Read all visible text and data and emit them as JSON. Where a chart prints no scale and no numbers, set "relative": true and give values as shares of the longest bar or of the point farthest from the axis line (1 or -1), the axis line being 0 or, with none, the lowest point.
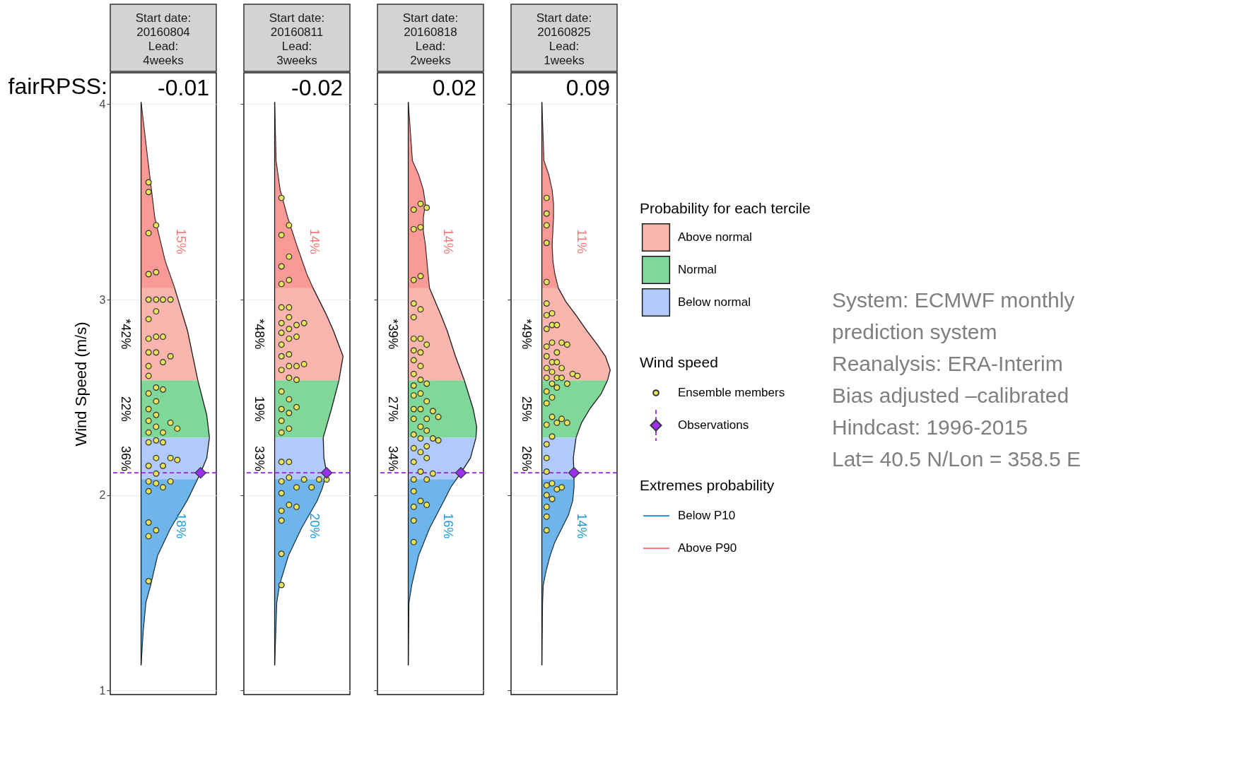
{
  "chart_data": [
    {
      "type": "area",
      "orientation": "horizontal",
      "relative": true,
      "title": "Start date:\n20160804\nLead:\n4weeks",
      "subtitle": "-0.01",
      "ylabel": "Wind Speed (m/s)",
      "ylim": [
        0.98,
        4.16
      ],
      "yticks": [
        1,
        2,
        3,
        4
      ],
      "grid": "y",
      "tick_labels": "y",
      "ref_lines": [
        {
          "axis": "y",
          "value": 2.114,
          "color": "#a020f0",
          "line_style": "dashed"
        }
      ],
      "annotations": [
        "fairRPSS:",
        "*42%",
        "22%",
        "36%",
        "15%",
        "18%"
      ],
      "series": [
        {
          "color": "#f9b5ae",
          "x": [
            2.587,
            2.84,
            3.06,
            3.2,
            3.42,
            3.71,
            4.01
          ],
          "values": [
            0.83,
            0.68,
            0.49,
            0.35,
            0.2,
            0.1,
            0
          ]
        },
        {
          "color": "#7fd89a",
          "x": [
            2.294,
            2.41,
            2.587
          ],
          "values": [
            1.0,
            0.96,
            0.83
          ]
        },
        {
          "color": "#b0cbfb",
          "x": [
            1.13,
            1.3,
            1.45,
            1.54,
            1.69,
            1.83,
            1.977,
            2.114,
            2.19,
            2.294
          ],
          "values": [
            0,
            0.03,
            0.07,
            0.14,
            0.24,
            0.43,
            0.68,
            0.87,
            0.96,
            1.0
          ]
        },
        {
          "color": "#1e9bd7",
          "x": [
            1.13,
            1.3,
            1.45,
            1.54,
            1.69,
            1.83,
            1.977,
            2.08
          ],
          "values": [
            0,
            0.03,
            0.07,
            0.14,
            0.24,
            0.43,
            0.68,
            0.82
          ]
        },
        {
          "color": "#f87a7a",
          "x": [
            3.06,
            3.2,
            3.42,
            3.71,
            4.01
          ],
          "values": [
            0.49,
            0.35,
            0.2,
            0.1,
            0
          ]
        },
        {
          "type": "scatter",
          "marker": "circle",
          "color": "#e8e35a",
          "x": [
            3.6,
            3.55,
            3.38,
            3.34,
            3.13,
            3.14,
            3.0,
            3.0,
            3.0,
            3.0,
            2.94,
            2.9,
            2.8,
            2.81,
            2.81,
            2.73,
            2.73,
            2.71,
            2.68,
            2.66,
            2.61,
            2.55,
            2.54,
            2.52,
            2.48,
            2.44,
            2.41,
            2.38,
            2.37,
            2.34,
            2.35,
            2.32,
            2.32,
            2.27,
            2.28,
            2.27,
            2.19,
            2.19,
            2.18,
            2.15,
            2.15,
            2.11,
            2.07,
            2.06,
            2.07,
            2.04,
            2.02,
            1.86,
            1.82,
            1.79,
            1.56
          ],
          "values": [
            0.11,
            0.11,
            0.22,
            0.11,
            0.11,
            0.22,
            0.11,
            0.22,
            0.32,
            0.43,
            0.22,
            0.11,
            0.11,
            0.22,
            0.32,
            0.11,
            0.22,
            0.43,
            0.32,
            0.11,
            0.11,
            0.22,
            0.32,
            0.11,
            0.22,
            0.11,
            0.22,
            0.11,
            0.43,
            0.53,
            0.22,
            0.11,
            0.32,
            0.11,
            0.22,
            0.32,
            0.22,
            0.43,
            0.53,
            0.32,
            0.11,
            0.22,
            0.11,
            0.22,
            0.43,
            0.32,
            0.11,
            0.11,
            0.22,
            0.11,
            0.11
          ]
        },
        {
          "type": "scatter",
          "marker": "diamond",
          "color": "#9b30f0",
          "x": [
            2.114
          ],
          "values": [
            0.87
          ]
        }
      ]
    },
    {
      "type": "area",
      "orientation": "horizontal",
      "relative": true,
      "title": "Start date:\n20160811\nLead:\n3weeks",
      "subtitle": "-0.02",
      "ylim": [
        0.98,
        4.16
      ],
      "yticks": [
        1,
        2,
        3,
        4
      ],
      "grid": "y",
      "tick_labels": false,
      "ref_lines": [
        {
          "axis": "y",
          "value": 2.114,
          "color": "#a020f0",
          "line_style": "dashed"
        }
      ],
      "annotations": [
        "*48%",
        "19%",
        "33%",
        "14%",
        "20%"
      ],
      "series": [
        {
          "color": "#f9b5ae",
          "x": [
            2.587,
            2.71,
            2.84,
            2.92,
            3.06,
            3.13,
            3.28,
            3.42,
            3.56,
            3.71,
            4.01
          ],
          "values": [
            0.94,
            1.0,
            0.86,
            0.76,
            0.56,
            0.47,
            0.32,
            0.19,
            0.08,
            0.02,
            0
          ]
        },
        {
          "color": "#7fd89a",
          "x": [
            2.294,
            2.44,
            2.587
          ],
          "values": [
            0.71,
            0.83,
            0.94
          ]
        },
        {
          "color": "#b0cbfb",
          "x": [
            1.13,
            1.45,
            1.54,
            1.69,
            1.83,
            1.97,
            2.04,
            2.114,
            2.19,
            2.294
          ],
          "values": [
            0,
            0.03,
            0.07,
            0.2,
            0.39,
            0.62,
            0.7,
            0.76,
            0.72,
            0.71
          ]
        },
        {
          "color": "#1e9bd7",
          "x": [
            1.13,
            1.45,
            1.54,
            1.69,
            1.83,
            1.97,
            2.04,
            2.08
          ],
          "values": [
            0,
            0.03,
            0.07,
            0.2,
            0.39,
            0.62,
            0.7,
            0.73
          ]
        },
        {
          "color": "#f87a7a",
          "x": [
            3.06,
            3.13,
            3.28,
            3.42,
            3.56,
            3.71,
            4.01
          ],
          "values": [
            0.56,
            0.47,
            0.32,
            0.19,
            0.08,
            0.02,
            0
          ]
        },
        {
          "type": "scatter",
          "marker": "circle",
          "color": "#e8e35a",
          "x": [
            3.52,
            3.38,
            3.33,
            3.22,
            3.17,
            3.1,
            3.08,
            2.96,
            2.96,
            2.91,
            2.88,
            2.87,
            2.88,
            2.83,
            2.85,
            2.81,
            2.8,
            2.77,
            2.71,
            2.72,
            2.67,
            2.66,
            2.66,
            2.64,
            2.6,
            2.59,
            2.53,
            2.49,
            2.45,
            2.44,
            2.42,
            2.38,
            2.34,
            2.32,
            2.17,
            2.17,
            2.07,
            2.09,
            2.08,
            2.08,
            2.08,
            2.04,
            2.04,
            2.01,
            1.95,
            1.94,
            1.92,
            1.87,
            1.7,
            1.54
          ],
          "values": [
            0.1,
            0.21,
            0.1,
            0.21,
            0.1,
            0.21,
            0.1,
            0.1,
            0.21,
            0.21,
            0.1,
            0.32,
            0.43,
            0.1,
            0.21,
            0.32,
            0.21,
            0.1,
            0.1,
            0.21,
            0.43,
            0.32,
            0.21,
            0.1,
            0.21,
            0.32,
            0.1,
            0.21,
            0.32,
            0.1,
            0.21,
            0.1,
            0.21,
            0.1,
            0.1,
            0.21,
            0.1,
            0.21,
            0.43,
            0.65,
            0.76,
            0.32,
            0.54,
            0.1,
            0.21,
            0.32,
            0.1,
            0.1,
            0.1,
            0.1
          ]
        },
        {
          "type": "scatter",
          "marker": "diamond",
          "color": "#9b30f0",
          "x": [
            2.114
          ],
          "values": [
            0.76
          ]
        }
      ]
    },
    {
      "type": "area",
      "orientation": "horizontal",
      "relative": true,
      "title": "Start date:\n20160818\nLead:\n2weeks",
      "subtitle": "0.02",
      "ylim": [
        0.98,
        4.16
      ],
      "yticks": [
        1,
        2,
        3,
        4
      ],
      "grid": "y",
      "tick_labels": false,
      "ref_lines": [
        {
          "axis": "y",
          "value": 2.114,
          "color": "#a020f0",
          "line_style": "dashed"
        }
      ],
      "annotations": [
        "*39%",
        "27%",
        "34%",
        "14%",
        "16%"
      ],
      "series": [
        {
          "color": "#f9b5ae",
          "x": [
            2.587,
            2.71,
            2.84,
            2.92,
            3.06,
            3.13,
            3.28,
            3.35,
            3.42,
            3.49,
            3.56,
            3.64,
            3.71,
            4.01
          ],
          "values": [
            0.82,
            0.69,
            0.57,
            0.48,
            0.31,
            0.29,
            0.25,
            0.22,
            0.22,
            0.25,
            0.22,
            0.15,
            0.06,
            0
          ]
        },
        {
          "color": "#7fd89a",
          "x": [
            2.294,
            2.35,
            2.44,
            2.587
          ],
          "values": [
            0.99,
            1.0,
            0.95,
            0.82
          ]
        },
        {
          "color": "#b0cbfb",
          "x": [
            1.13,
            1.45,
            1.54,
            1.69,
            1.83,
            1.97,
            2.04,
            2.114,
            2.19,
            2.294
          ],
          "values": [
            0,
            0.01,
            0.05,
            0.15,
            0.31,
            0.52,
            0.62,
            0.77,
            0.91,
            0.99
          ]
        },
        {
          "color": "#1e9bd7",
          "x": [
            1.13,
            1.45,
            1.54,
            1.69,
            1.83,
            1.97,
            2.04,
            2.08
          ],
          "values": [
            0,
            0.01,
            0.05,
            0.15,
            0.31,
            0.52,
            0.62,
            0.7
          ]
        },
        {
          "color": "#f87a7a",
          "x": [
            3.06,
            3.13,
            3.28,
            3.35,
            3.42,
            3.49,
            3.56,
            3.64,
            3.71,
            4.01
          ],
          "values": [
            0.31,
            0.29,
            0.25,
            0.22,
            0.22,
            0.25,
            0.22,
            0.15,
            0.06,
            0
          ]
        },
        {
          "type": "scatter",
          "marker": "circle",
          "color": "#e8e35a",
          "x": [
            3.49,
            3.46,
            3.47,
            3.36,
            3.37,
            3.12,
            3.1,
            2.98,
            2.95,
            2.91,
            2.8,
            2.8,
            2.77,
            2.74,
            2.73,
            2.69,
            2.66,
            2.62,
            2.59,
            2.57,
            2.56,
            2.52,
            2.51,
            2.48,
            2.44,
            2.44,
            2.43,
            2.4,
            2.39,
            2.39,
            2.35,
            2.33,
            2.31,
            2.29,
            2.29,
            2.28,
            2.24,
            2.25,
            2.22,
            2.19,
            2.17,
            2.12,
            2.11,
            2.08,
            2.08,
            2.02,
            1.97,
            1.95,
            1.94,
            1.87,
            1.76
          ],
          "values": [
            0.18,
            0.08,
            0.27,
            0.08,
            0.18,
            0.18,
            0.08,
            0.08,
            0.18,
            0.08,
            0.08,
            0.18,
            0.27,
            0.08,
            0.18,
            0.08,
            0.18,
            0.08,
            0.18,
            0.27,
            0.08,
            0.18,
            0.08,
            0.27,
            0.08,
            0.18,
            0.36,
            0.44,
            0.08,
            0.27,
            0.18,
            0.27,
            0.08,
            0.18,
            0.36,
            0.44,
            0.08,
            0.27,
            0.18,
            0.27,
            0.08,
            0.18,
            0.36,
            0.27,
            0.08,
            0.08,
            0.18,
            0.27,
            0.08,
            0.08,
            0.08
          ]
        },
        {
          "type": "scatter",
          "marker": "diamond",
          "color": "#9b30f0",
          "x": [
            2.114
          ],
          "values": [
            0.77
          ]
        }
      ]
    },
    {
      "type": "area",
      "orientation": "horizontal",
      "relative": true,
      "title": "Start date:\n20160825\nLead:\n1weeks",
      "subtitle": "0.09",
      "ylim": [
        0.98,
        4.16
      ],
      "yticks": [
        1,
        2,
        3,
        4
      ],
      "grid": "y",
      "tick_labels": false,
      "legend": "right",
      "legend_title": "Probability for each tercile",
      "ref_lines": [
        {
          "axis": "y",
          "value": 2.114,
          "color": "#a020f0",
          "line_style": "dashed"
        }
      ],
      "annotations": [
        "Wind speed",
        "Extremes probability",
        "System: ECMWF monthly",
        "prediction system",
        "Reanalysis: ERA-Interim",
        "Bias adjusted –calibrated",
        "Hindcast: 1996-2015",
        "Lat= 40.5 N/Lon = 358.5 E",
        "*49%",
        "25%",
        "26%",
        "11%",
        "14%"
      ],
      "series": [
        {
          "name": "Above normal",
          "color": "#f9b5ae",
          "x": [
            2.587,
            2.64,
            2.71,
            2.77,
            2.84,
            2.92,
            2.99,
            3.06,
            3.13,
            3.2,
            3.28,
            3.35,
            3.42,
            3.49,
            3.56,
            3.64,
            3.71,
            4.01
          ],
          "values": [
            0.96,
            1.0,
            0.93,
            0.81,
            0.66,
            0.5,
            0.35,
            0.24,
            0.19,
            0.16,
            0.15,
            0.16,
            0.17,
            0.17,
            0.15,
            0.1,
            0.03,
            0
          ]
        },
        {
          "name": "Normal",
          "color": "#7fd89a",
          "x": [
            2.294,
            2.37,
            2.44,
            2.52,
            2.587
          ],
          "values": [
            0.5,
            0.58,
            0.7,
            0.87,
            0.96
          ]
        },
        {
          "name": "Below normal",
          "color": "#b0cbfb",
          "x": [
            1.13,
            1.45,
            1.54,
            1.61,
            1.69,
            1.76,
            1.83,
            1.9,
            1.97,
            2.04,
            2.114,
            2.19,
            2.294
          ],
          "values": [
            0,
            0.01,
            0.02,
            0.06,
            0.12,
            0.19,
            0.29,
            0.39,
            0.45,
            0.47,
            0.47,
            0.46,
            0.5
          ]
        },
        {
          "name": "Below P10",
          "color": "#1e9bd7",
          "x": [
            1.13,
            1.45,
            1.54,
            1.61,
            1.69,
            1.76,
            1.83,
            1.9,
            1.97,
            2.04,
            2.08
          ],
          "values": [
            0,
            0.01,
            0.02,
            0.06,
            0.12,
            0.19,
            0.29,
            0.39,
            0.45,
            0.47,
            0.47
          ]
        },
        {
          "name": "Above P90",
          "color": "#f87a7a",
          "x": [
            3.06,
            3.13,
            3.2,
            3.28,
            3.35,
            3.42,
            3.49,
            3.56,
            3.64,
            3.71,
            4.01
          ],
          "values": [
            0.24,
            0.19,
            0.16,
            0.15,
            0.16,
            0.17,
            0.17,
            0.15,
            0.1,
            0.03,
            0
          ]
        },
        {
          "name": "Ensemble members",
          "type": "scatter",
          "marker": "circle",
          "color": "#e8e35a",
          "x": [
            3.52,
            3.44,
            3.38,
            3.29,
            3.09,
            2.98,
            2.93,
            2.92,
            2.87,
            2.87,
            2.85,
            2.76,
            2.78,
            2.78,
            2.77,
            2.73,
            2.71,
            2.68,
            2.68,
            2.65,
            2.65,
            2.63,
            2.6,
            2.6,
            2.6,
            2.62,
            2.61,
            2.57,
            2.57,
            2.55,
            2.53,
            2.5,
            2.47,
            2.4,
            2.39,
            2.37,
            2.37,
            2.36,
            2.3,
            2.26,
            2.19,
            2.12,
            2.05,
            2.06,
            2.04,
            2.03,
            2.0,
            1.98,
            1.94,
            1.89,
            1.82
          ],
          "values": [
            0.07,
            0.07,
            0.07,
            0.07,
            0.07,
            0.07,
            0.15,
            0.07,
            0.15,
            0.22,
            0.07,
            0.07,
            0.15,
            0.29,
            0.37,
            0.22,
            0.07,
            0.15,
            0.22,
            0.29,
            0.07,
            0.15,
            0.07,
            0.22,
            0.29,
            0.45,
            0.52,
            0.15,
            0.37,
            0.22,
            0.07,
            0.15,
            0.07,
            0.15,
            0.29,
            0.22,
            0.37,
            0.07,
            0.15,
            0.07,
            0.07,
            0.07,
            0.07,
            0.15,
            0.29,
            0.22,
            0.07,
            0.15,
            0.07,
            0.07,
            0.07
          ]
        },
        {
          "name": "Observations",
          "type": "scatter",
          "marker": "diamond",
          "color": "#9b30f0",
          "x": [
            2.114
          ],
          "values": [
            0.47
          ]
        }
      ]
    }
  ]
}
